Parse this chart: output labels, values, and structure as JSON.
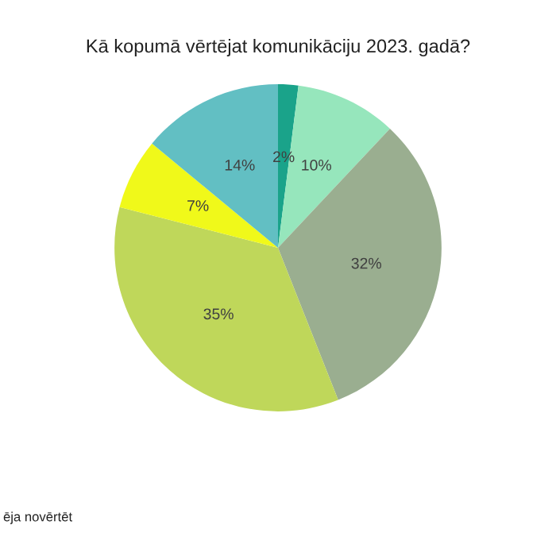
{
  "chart_data": {
    "type": "pie",
    "title": "Kā kopumā vērtējat komunikāciju 2023. gadā?",
    "categories": [
      null,
      null,
      null,
      null,
      null,
      null
    ],
    "values": [
      2,
      10,
      32,
      35,
      7,
      14
    ],
    "colors": [
      "#1aa38a",
      "#96e6bc",
      "#9aae90",
      "#bfd75a",
      "#f0f91a",
      "#62bfc3"
    ],
    "value_labels": [
      "2%",
      "10%",
      "32%",
      "35%",
      "7%",
      "14%"
    ],
    "annotations": [
      "ēja novērtēt"
    ]
  }
}
